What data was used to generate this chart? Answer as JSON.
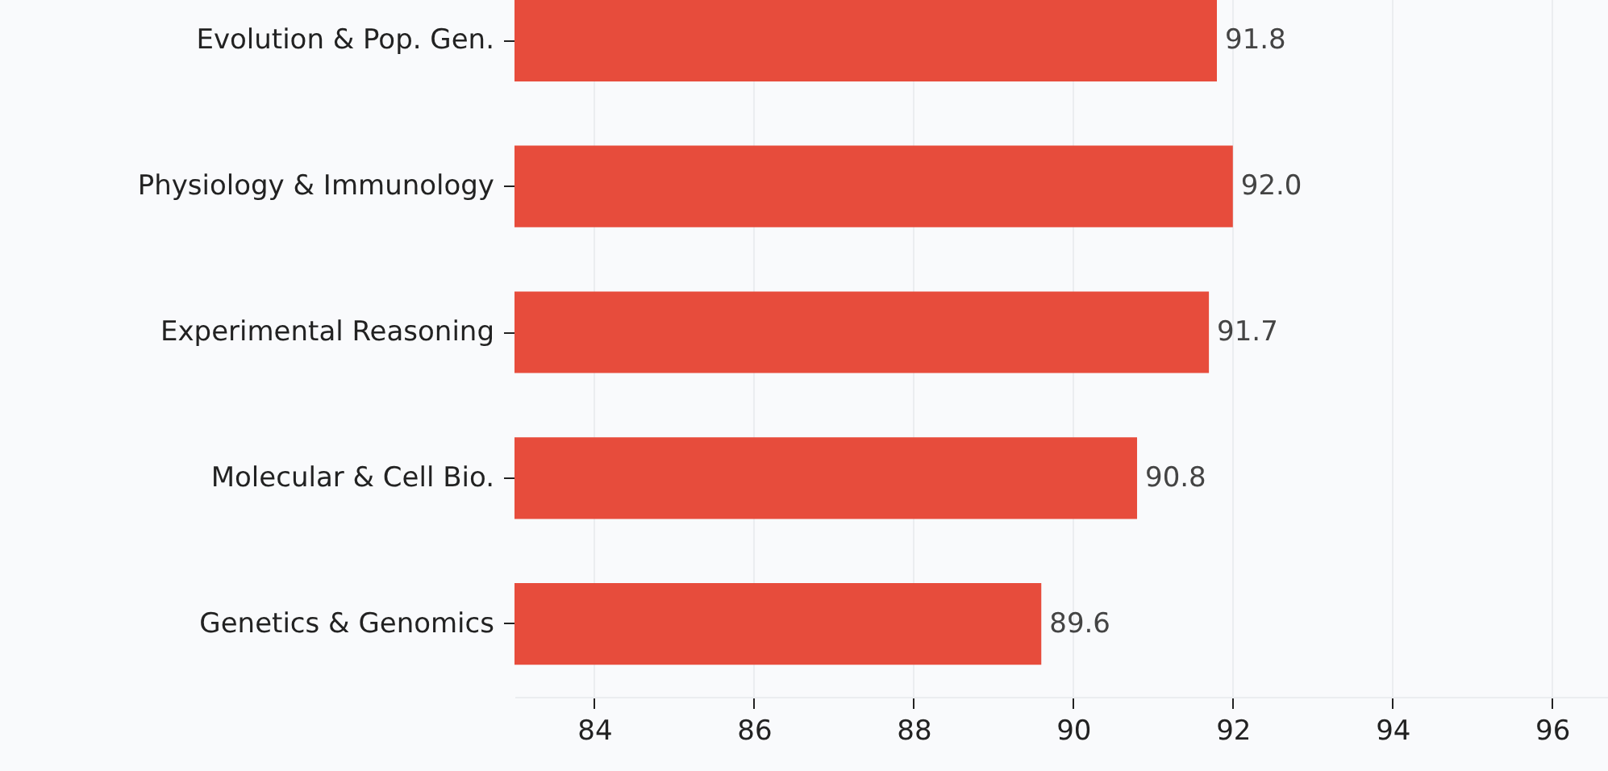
{
  "chart_data": {
    "type": "bar",
    "orientation": "horizontal",
    "categories": [
      "Evolution & Pop. Gen.",
      "Physiology & Immunology",
      "Experimental Reasoning",
      "Molecular & Cell Bio.",
      "Genetics & Genomics"
    ],
    "values": [
      91.8,
      92.0,
      91.7,
      90.8,
      89.6
    ],
    "value_labels": [
      "91.8",
      "92.0",
      "91.7",
      "90.8",
      "89.6"
    ],
    "color": "#e74c3c",
    "xlim": [
      83,
      96.7
    ],
    "xticks": [
      84,
      86,
      88,
      90,
      92,
      94,
      96
    ],
    "grid": "x"
  }
}
